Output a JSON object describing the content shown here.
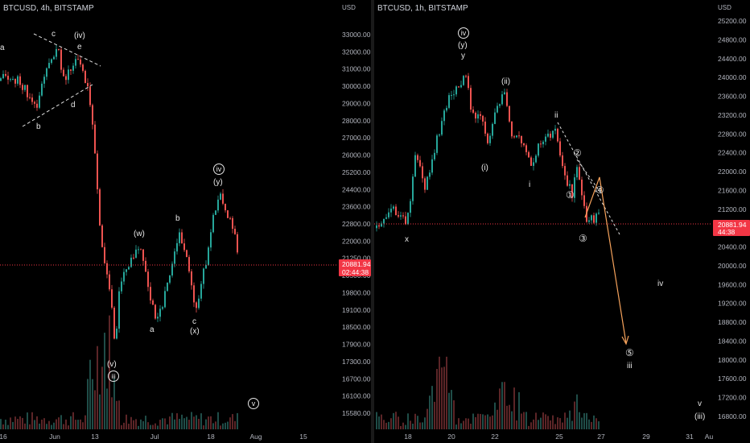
{
  "charts": {
    "left": {
      "symbol_label": "BTCUSD, 4h, BITSTAMP",
      "currency": "USD",
      "y_ticks": [
        "33000.00",
        "32000.00",
        "31000.00",
        "30000.00",
        "29000.00",
        "28000.00",
        "27000.00",
        "26000.00",
        "25200.00",
        "24400.00",
        "23600.00",
        "22800.00",
        "22000.00",
        "21250.00",
        "20500.00",
        "19800.00",
        "19100.00",
        "18500.00",
        "17900.00",
        "17300.00",
        "16700.00",
        "16100.00",
        "15580.00"
      ],
      "x_ticks": [
        "16",
        "Jun",
        "13",
        "Jul",
        "18",
        "Aug",
        "15"
      ],
      "price_label": "20881.94",
      "countdown": "02:44:38",
      "wave_labels": {
        "a_top": "a",
        "b_top": "b",
        "c_top": "c",
        "iv_top": "(iv)",
        "e_top": "e",
        "d_top": "d",
        "w": "(w)",
        "b_mid": "b",
        "a_mid": "a",
        "c_mid": "c",
        "x": "(x)",
        "iv_circle": "iv",
        "y": "(y)",
        "v": "(v)",
        "iii_circle": "iii",
        "v_circle": "v"
      }
    },
    "right": {
      "symbol_label": "BTCUSD, 1h, BITSTAMP",
      "currency": "USD",
      "y_ticks": [
        "25200.00",
        "24800.00",
        "24400.00",
        "24000.00",
        "23600.00",
        "23200.00",
        "22800.00",
        "22400.00",
        "22000.00",
        "21600.00",
        "21200.00",
        "20800.00",
        "20400.00",
        "20000.00",
        "19600.00",
        "19200.00",
        "18800.00",
        "18400.00",
        "18000.00",
        "17600.00",
        "17200.00",
        "16800.00"
      ],
      "x_ticks": [
        "18",
        "20",
        "22",
        "25",
        "27",
        "29",
        "31",
        "Au"
      ],
      "price_label": "20881.94",
      "countdown": "44:38",
      "wave_labels": {
        "iv_circle": "iv",
        "y_paren": "(y)",
        "y": "y",
        "ii_paren": "(ii)",
        "i_paren": "(i)",
        "x": "x",
        "i": "i",
        "ii": "ii",
        "c2": "②",
        "c1": "①",
        "c4": "④",
        "c3": "③",
        "c5": "⑤",
        "iii": "iii",
        "iv": "iv",
        "v": "v",
        "iii_paren": "(iii)"
      }
    }
  },
  "colors": {
    "up": "#26a69a",
    "down": "#ef5350",
    "price_line": "#f23645",
    "projection": "#f7a35c",
    "text": "#d1d4dc"
  }
}
